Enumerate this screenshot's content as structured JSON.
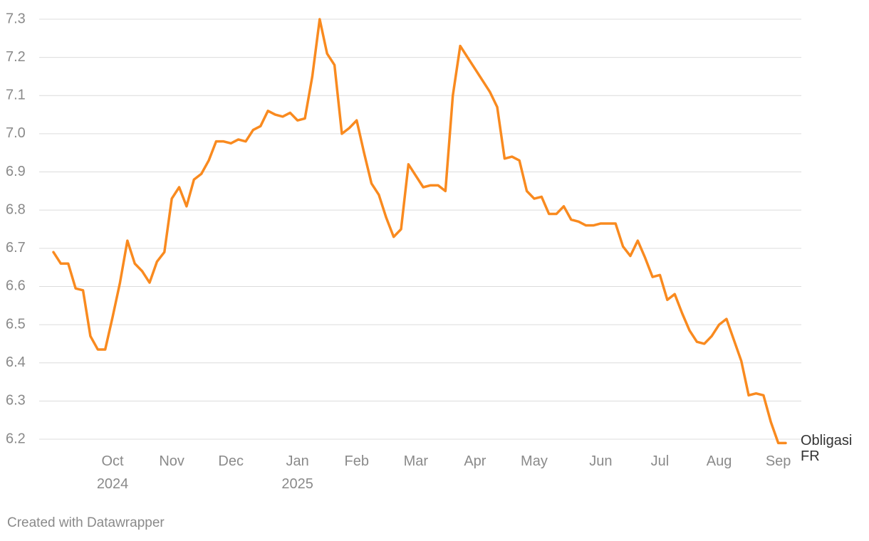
{
  "chart_data": {
    "type": "line",
    "categories": [
      null,
      null,
      null,
      null,
      null,
      null,
      null,
      null,
      "Oct 2024",
      null,
      null,
      null,
      null,
      null,
      null,
      null,
      "Nov",
      null,
      null,
      null,
      null,
      null,
      null,
      null,
      "Dec",
      null,
      null,
      null,
      null,
      null,
      null,
      null,
      null,
      "Jan 2025",
      null,
      null,
      null,
      null,
      null,
      null,
      null,
      "Feb",
      null,
      null,
      null,
      null,
      null,
      null,
      null,
      "Mar",
      null,
      null,
      null,
      null,
      null,
      null,
      null,
      "Apr",
      null,
      null,
      null,
      null,
      null,
      null,
      null,
      "May",
      null,
      null,
      null,
      null,
      null,
      null,
      null,
      null,
      "Jun",
      null,
      null,
      null,
      null,
      null,
      null,
      null,
      "Jul",
      null,
      null,
      null,
      null,
      null,
      null,
      null,
      "Aug",
      null,
      null,
      null,
      null,
      null,
      null,
      null,
      "Sep",
      null
    ],
    "series": [
      {
        "name": "Obligasi FR",
        "color": "#f98a1f",
        "values": [
          6.69,
          6.66,
          6.66,
          6.595,
          6.59,
          6.47,
          6.435,
          6.435,
          6.52,
          6.61,
          6.72,
          6.66,
          6.64,
          6.61,
          6.665,
          6.69,
          6.83,
          6.86,
          6.81,
          6.88,
          6.895,
          6.93,
          6.98,
          6.98,
          6.975,
          6.985,
          6.98,
          7.01,
          7.02,
          7.06,
          7.05,
          7.045,
          7.055,
          7.035,
          7.04,
          7.15,
          7.3,
          7.21,
          7.18,
          7.0,
          7.015,
          7.035,
          6.95,
          6.87,
          6.84,
          6.78,
          6.73,
          6.75,
          6.92,
          6.89,
          6.86,
          6.865,
          6.865,
          6.85,
          7.1,
          7.23,
          7.2,
          7.17,
          7.14,
          7.11,
          7.07,
          6.935,
          6.94,
          6.93,
          6.85,
          6.83,
          6.835,
          6.79,
          6.79,
          6.81,
          6.775,
          6.77,
          6.76,
          6.76,
          6.765,
          6.765,
          6.765,
          6.705,
          6.68,
          6.72,
          6.675,
          6.625,
          6.63,
          6.565,
          6.58,
          6.53,
          6.485,
          6.455,
          6.45,
          6.47,
          6.5,
          6.515,
          6.46,
          6.405,
          6.315,
          6.32,
          6.315,
          6.245,
          6.19,
          6.19
        ]
      }
    ],
    "ylim": [
      6.2,
      7.3
    ],
    "yticks": [
      6.2,
      6.3,
      6.4,
      6.5,
      6.6,
      6.7,
      6.8,
      6.9,
      {
        "value": 7,
        "label": "7.0"
      },
      7.1,
      7.2,
      7.3
    ],
    "grid": true,
    "footer": "Created with Datawrapper"
  }
}
